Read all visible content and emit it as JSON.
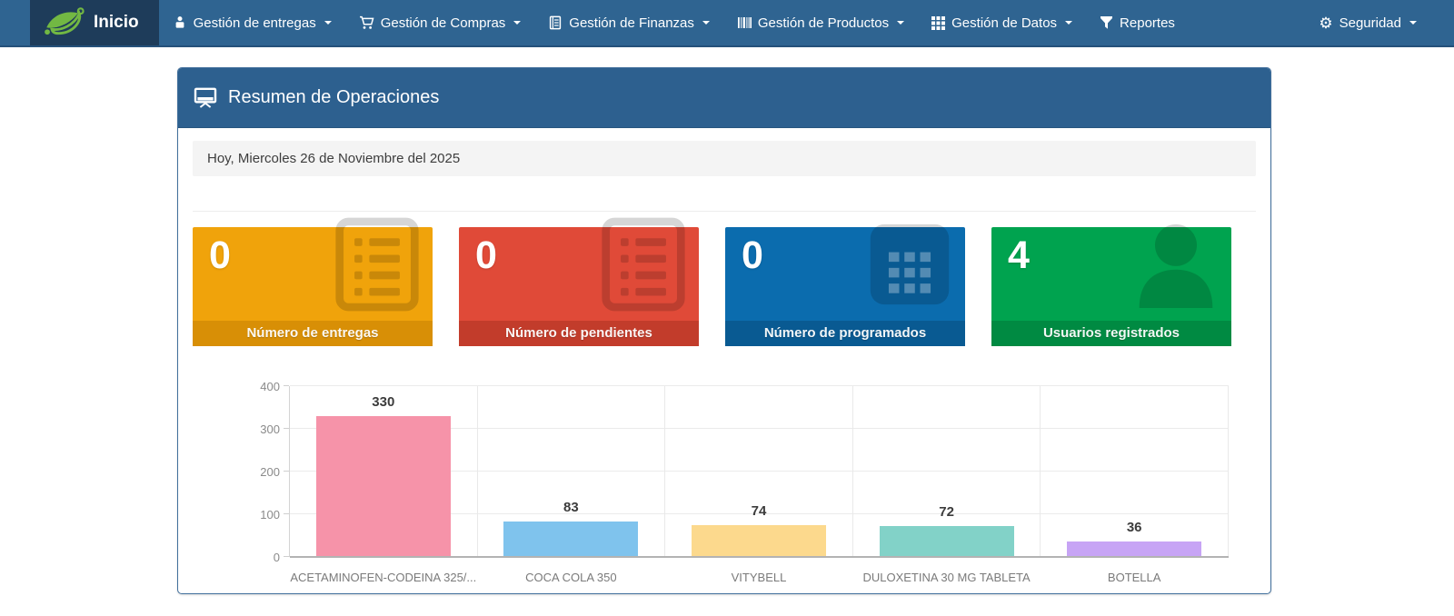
{
  "navbar": {
    "brand_label": "Inicio",
    "bg_color": "#2f6491",
    "brand_bg_color": "#1e3c5a",
    "logo_color": "#72b843",
    "items": [
      {
        "label": "Gestión de entregas",
        "icon": "person-icon",
        "caret": true
      },
      {
        "label": "Gestión de Compras",
        "icon": "cart-icon",
        "caret": true
      },
      {
        "label": "Gestión de Finanzas",
        "icon": "ledger-icon",
        "caret": true
      },
      {
        "label": "Gestión de Productos",
        "icon": "barcode-icon",
        "caret": true
      },
      {
        "label": "Gestión de Datos",
        "icon": "grid-icon",
        "caret": true
      },
      {
        "label": "Reportes",
        "icon": "filter-icon",
        "caret": false
      }
    ],
    "right_item": {
      "label": "Seguridad",
      "icon": "gear-icon",
      "caret": true,
      "gear_glyph": "⚙"
    }
  },
  "panel": {
    "title": "Resumen de Operaciones",
    "header_bg_color": "#2d608f",
    "date_text": "Hoy, Miercoles 26 de Noviembre del 2025"
  },
  "stats": [
    {
      "value": "0",
      "label": "Número de entregas",
      "icon": "list-icon",
      "color": "#f0a30b",
      "footer_color": "#d88f06"
    },
    {
      "value": "0",
      "label": "Número de pendientes",
      "icon": "list-icon",
      "color": "#e04a38",
      "footer_color": "#c23c2b"
    },
    {
      "value": "0",
      "label": "Número de programados",
      "icon": "calendar-icon",
      "color": "#0b6cae",
      "footer_color": "#095a92"
    },
    {
      "value": "4",
      "label": "Usuarios registrados",
      "icon": "user-icon",
      "color": "#00a34f",
      "footer_color": "#008a42"
    }
  ],
  "chart_data": {
    "type": "bar",
    "categories": [
      "ACETAMINOFEN-CODEINA 325/...",
      "COCA COLA 350",
      "VITYBELL",
      "DULOXETINA 30 MG TABLETA",
      "BOTELLA"
    ],
    "values": [
      330,
      83,
      74,
      72,
      36
    ],
    "bar_colors": [
      "#f693a9",
      "#7fc3ed",
      "#fcd98d",
      "#82d2c8",
      "#c7a4f5"
    ],
    "title": "",
    "xlabel": "",
    "ylabel": "",
    "ylim": [
      0,
      400
    ],
    "yticks": [
      0,
      100,
      200,
      300,
      400
    ],
    "grid": true,
    "legend": false,
    "value_labels": true
  }
}
